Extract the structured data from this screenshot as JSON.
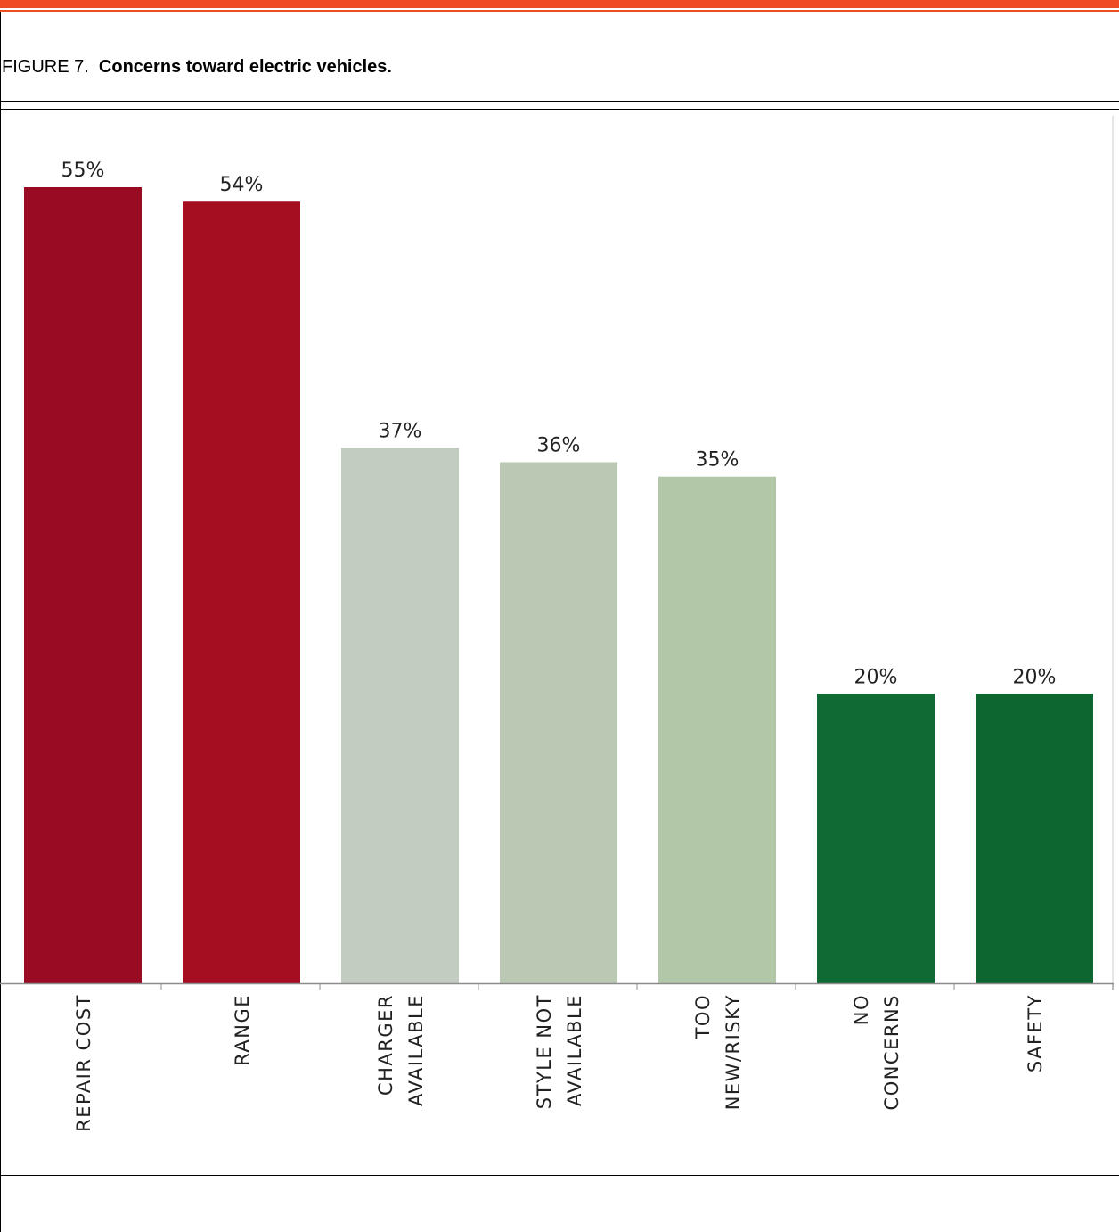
{
  "caption": {
    "prefix": "FIGURE 7.",
    "title": "Concerns toward electric vehicles."
  },
  "colors": {
    "top_rule": "#ef4a23",
    "axis": "#8c8c8c"
  },
  "chart_data": {
    "type": "bar",
    "title": "",
    "xlabel": "",
    "ylabel": "",
    "ylim": [
      0,
      55
    ],
    "grid": false,
    "legend": "none",
    "value_suffix": "%",
    "categories": [
      [
        "REPAIR COST"
      ],
      [
        "RANGE"
      ],
      [
        "CHARGER",
        "AVAILABLE"
      ],
      [
        "STYLE NOT",
        "AVAILABLE"
      ],
      [
        "TOO",
        "NEW/RISKY"
      ],
      [
        "NO",
        "CONCERNS"
      ],
      [
        "SAFETY"
      ]
    ],
    "values": [
      55,
      54,
      37,
      36,
      35,
      20,
      20
    ],
    "value_labels": [
      "55%",
      "54%",
      "37%",
      "36%",
      "35%",
      "20%",
      "20%"
    ],
    "bar_colors": [
      "#990a23",
      "#a50d21",
      "#c3ccc0",
      "#bbc9b4",
      "#b2c6a8",
      "#106a33",
      "#0d6530"
    ]
  }
}
